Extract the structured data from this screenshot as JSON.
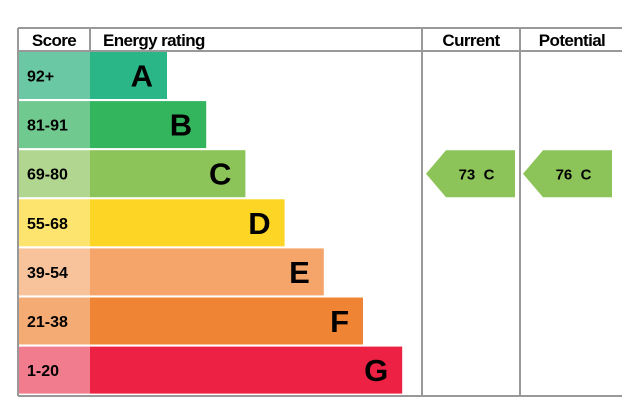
{
  "chart_data": {
    "type": "bar",
    "title": "",
    "headers": {
      "score": "Score",
      "rating": "Energy rating",
      "current": "Current",
      "potential": "Potential"
    },
    "bands": [
      {
        "letter": "A",
        "range": "92+",
        "order": 1,
        "color": "#2BB688",
        "score_color": "#6AC8A4"
      },
      {
        "letter": "B",
        "range": "81-91",
        "order": 2,
        "color": "#33B55E",
        "score_color": "#70C98E"
      },
      {
        "letter": "C",
        "range": "69-80",
        "order": 3,
        "color": "#8CC45A",
        "score_color": "#B0D690"
      },
      {
        "letter": "D",
        "range": "55-68",
        "order": 4,
        "color": "#FDD524",
        "score_color": "#FDE46E"
      },
      {
        "letter": "E",
        "range": "39-54",
        "order": 5,
        "color": "#F5A56A",
        "score_color": "#F8C39B"
      },
      {
        "letter": "F",
        "range": "21-38",
        "order": 6,
        "color": "#F08435",
        "score_color": "#F4AC74"
      },
      {
        "letter": "G",
        "range": "1-20",
        "order": 7,
        "color": "#EC2144",
        "score_color": "#F07C8E"
      }
    ],
    "current": {
      "value": 73,
      "band": "C",
      "label": "73  C",
      "color": "#8CC45A"
    },
    "potential": {
      "value": 76,
      "band": "C",
      "label": "76  C",
      "color": "#8CC45A"
    }
  }
}
